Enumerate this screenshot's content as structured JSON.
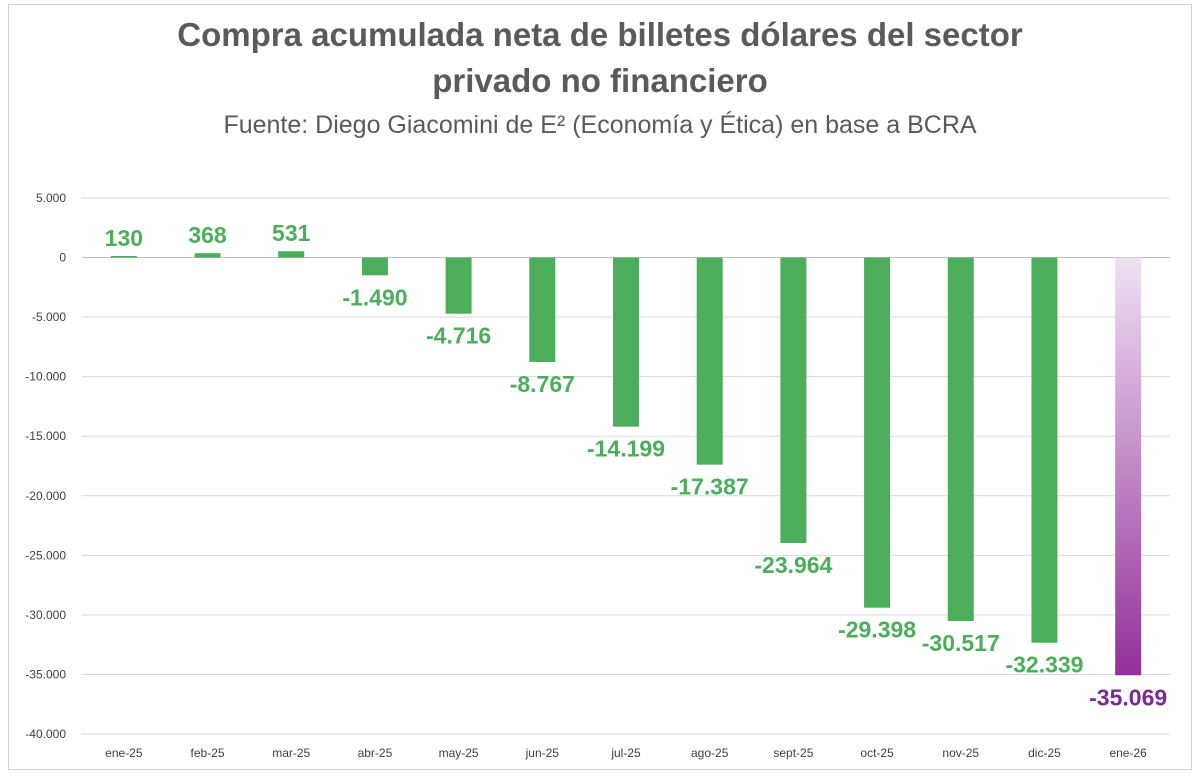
{
  "chart_data": {
    "type": "bar",
    "title_line1": "Compra acumulada neta de billetes dólares del sector",
    "title_line2": "privado no financiero",
    "subtitle": "Fuente: Diego Giacomini de E² (Economía y Ética) en base a BCRA",
    "categories": [
      "ene-25",
      "feb-25",
      "mar-25",
      "abr-25",
      "may-25",
      "jun-25",
      "jul-25",
      "ago-25",
      "sept-25",
      "oct-25",
      "nov-25",
      "dic-25",
      "ene-26"
    ],
    "values": [
      130,
      368,
      531,
      -1490,
      -4716,
      -8767,
      -14199,
      -17387,
      -23964,
      -29398,
      -30517,
      -32339,
      -35069
    ],
    "value_labels": [
      "130",
      "368",
      "531",
      "-1.490",
      "-4.716",
      "-8.767",
      "-14.199",
      "-17.387",
      "-23.964",
      "-29.398",
      "-30.517",
      "-32.339",
      "-35.069"
    ],
    "y_ticks": [
      5000,
      0,
      -5000,
      -10000,
      -15000,
      -20000,
      -25000,
      -30000,
      -35000,
      -40000
    ],
    "y_tick_labels": [
      "5.000",
      "0",
      "-5.000",
      "-10.000",
      "-15.000",
      "-20.000",
      "-25.000",
      "-30.000",
      "-35.000",
      "-40.000"
    ],
    "ylim": [
      -40000,
      5000
    ],
    "grid": true,
    "legend": false,
    "colors": {
      "bar": "#4cae5a",
      "label": "#4cae5a",
      "highlight_label": "#7a2a96",
      "highlight_gradient_top": "#efe1f3",
      "highlight_gradient_bottom": "#93309a",
      "grid": "#d9d9d9",
      "axis": "#bfbfbf"
    },
    "highlight_index": 12
  }
}
